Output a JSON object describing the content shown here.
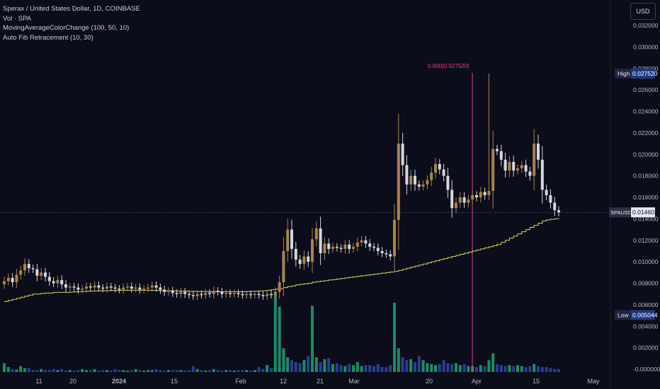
{
  "header": {
    "currency": "USD",
    "legend": [
      "Sperax / United States Dollar, 1D, COINBASE",
      "Vol · SPA",
      "MovingAverageColorChange (100, 50, 10)",
      "Auto Fib Retracement (10, 30)"
    ]
  },
  "colors": {
    "background": "#0c0d1a",
    "up_candle": "#a8834f",
    "down_candle": "#d4d6dc",
    "moving_average": "#d9d36a",
    "fib_line": "#e0409a",
    "vol_up": "#1f8a66",
    "vol_down": "#2a3f8f"
  },
  "chart_data": {
    "type": "candlestick",
    "ylim": [
      0,
      0.032
    ],
    "y_ticks": [
      "0.032000",
      "0.030000",
      "0.028000",
      "0.026000",
      "0.024000",
      "0.022000",
      "0.020000",
      "0.018000",
      "0.016000",
      "0.014000",
      "0.012000",
      "0.010000",
      "0.008000",
      "0.006000",
      "0.004000",
      "0.002000",
      "-0.000000"
    ],
    "x_ticks": [
      "11",
      "20",
      "2024",
      "15",
      "Feb",
      "12",
      "21",
      "Mar",
      "20",
      "Apr",
      "15",
      "May"
    ],
    "close": [
      0.0082,
      0.0085,
      0.0081,
      0.0088,
      0.0092,
      0.0098,
      0.0094,
      0.0093,
      0.0087,
      0.009,
      0.0086,
      0.0082,
      0.008,
      0.0083,
      0.0079,
      0.0076,
      0.0077,
      0.0076,
      0.0074,
      0.0075,
      0.0077,
      0.0076,
      0.0078,
      0.0076,
      0.0075,
      0.0077,
      0.0076,
      0.0075,
      0.0074,
      0.0076,
      0.0077,
      0.0075,
      0.0076,
      0.0074,
      0.0075,
      0.0076,
      0.0078,
      0.0076,
      0.0074,
      0.0072,
      0.0073,
      0.0071,
      0.007,
      0.0072,
      0.007,
      0.0069,
      0.0068,
      0.007,
      0.0069,
      0.0071,
      0.007,
      0.0073,
      0.0072,
      0.007,
      0.0071,
      0.007,
      0.0071,
      0.007,
      0.0069,
      0.007,
      0.0069,
      0.007,
      0.0069,
      0.0068,
      0.007,
      0.0069,
      0.0072,
      0.0081,
      0.011,
      0.013,
      0.0112,
      0.0102,
      0.0098,
      0.0105,
      0.01,
      0.0121,
      0.0131,
      0.0108,
      0.0117,
      0.0112,
      0.0114,
      0.0113,
      0.0112,
      0.0116,
      0.0112,
      0.0114,
      0.0118,
      0.012,
      0.0117,
      0.0114,
      0.0113,
      0.011,
      0.0108,
      0.0107,
      0.0105,
      0.0139,
      0.021,
      0.019,
      0.0172,
      0.018,
      0.0172,
      0.017,
      0.0172,
      0.0176,
      0.0183,
      0.0191,
      0.0186,
      0.018,
      0.0167,
      0.015,
      0.0155,
      0.016,
      0.0155,
      0.0158,
      0.0162,
      0.016,
      0.0165,
      0.0162,
      0.0166,
      0.0205,
      0.0203,
      0.0195,
      0.0185,
      0.0193,
      0.0185,
      0.0187,
      0.019,
      0.0184,
      0.018,
      0.021,
      0.0195,
      0.0167,
      0.0162,
      0.0155,
      0.0148,
      0.0146
    ],
    "ma": [
      0.0063,
      0.0064,
      0.0065,
      0.0066,
      0.0067,
      0.0068,
      0.0069,
      0.007,
      0.007,
      0.00705,
      0.0071,
      0.0071,
      0.00715,
      0.00715,
      0.00715,
      0.00715,
      0.00718,
      0.0072,
      0.00722,
      0.00724,
      0.00726,
      0.00727,
      0.00728,
      0.0073,
      0.00731,
      0.00731,
      0.00732,
      0.00733,
      0.00734,
      0.00734,
      0.00735,
      0.00735,
      0.00735,
      0.00735,
      0.00735,
      0.00734,
      0.00734,
      0.00733,
      0.00732,
      0.00731,
      0.0073,
      0.00729,
      0.00728,
      0.00727,
      0.00726,
      0.00725,
      0.00724,
      0.00723,
      0.00722,
      0.00722,
      0.00721,
      0.00721,
      0.00721,
      0.00721,
      0.00721,
      0.00721,
      0.00721,
      0.00721,
      0.00721,
      0.00722,
      0.00724,
      0.00725,
      0.00728,
      0.0073,
      0.00735,
      0.0074,
      0.00745,
      0.0075,
      0.0076,
      0.0077,
      0.00775,
      0.00785,
      0.0079,
      0.00795,
      0.008,
      0.0081,
      0.00815,
      0.0082,
      0.00825,
      0.0083,
      0.00835,
      0.0084,
      0.00845,
      0.0085,
      0.00855,
      0.0086,
      0.00865,
      0.0087,
      0.00875,
      0.0088,
      0.00885,
      0.0089,
      0.00895,
      0.009,
      0.00905,
      0.0091,
      0.0092,
      0.0093,
      0.0094,
      0.0095,
      0.0096,
      0.0097,
      0.0098,
      0.0099,
      0.01,
      0.0101,
      0.0102,
      0.0103,
      0.0104,
      0.0105,
      0.0106,
      0.0107,
      0.0108,
      0.0109,
      0.011,
      0.0111,
      0.0112,
      0.0113,
      0.0114,
      0.0115,
      0.0116,
      0.0118,
      0.012,
      0.0122,
      0.0124,
      0.0126,
      0.0128,
      0.013,
      0.0132,
      0.0134,
      0.0136,
      0.0138,
      0.0139,
      0.01395,
      0.014,
      0.01405
    ],
    "volume_rel": [
      0.9,
      0.5,
      0.3,
      0.25,
      0.6,
      0.4,
      0.4,
      0.2,
      0.2,
      0.3,
      0.2,
      0.2,
      0.3,
      0.2,
      0.3,
      0.15,
      0.2,
      0.15,
      0.2,
      0.3,
      0.2,
      0.2,
      0.3,
      0.15,
      0.2,
      0.2,
      0.15,
      0.3,
      0.2,
      0.2,
      0.15,
      0.2,
      0.3,
      0.2,
      0.15,
      0.2,
      0.2,
      0.3,
      0.2,
      0.15,
      0.2,
      0.2,
      0.2,
      0.2,
      0.15,
      0.2,
      0.6,
      0.3,
      0.2,
      0.15,
      0.2,
      0.3,
      0.2,
      0.15,
      0.2,
      0.2,
      0.15,
      0.2,
      0.2,
      0.2,
      0.15,
      0.2,
      0.5,
      0.3,
      0.7,
      0.4,
      7.9,
      6.6,
      2.4,
      1.5,
      1.2,
      1.0,
      0.9,
      1.2,
      1.6,
      6.7,
      1.5,
      1.0,
      1.3,
      1.4,
      0.8,
      0.9,
      0.7,
      0.6,
      0.8,
      0.7,
      1.0,
      0.6,
      0.7,
      0.7,
      0.6,
      0.8,
      0.5,
      0.5,
      0.7,
      7.0,
      2.4,
      1.5,
      1.2,
      1.3,
      1.0,
      1.6,
      1.2,
      0.9,
      0.8,
      0.7,
      0.8,
      1.2,
      0.9,
      0.8,
      0.9,
      0.7,
      0.8,
      0.6,
      0.6,
      0.5,
      0.7,
      0.6,
      1.2,
      1.9,
      0.8,
      0.7,
      0.6,
      0.7,
      0.6,
      0.7,
      0.6,
      0.5,
      0.6,
      0.8,
      0.6,
      0.5,
      0.5,
      0.4,
      0.3,
      0.3
    ],
    "current_label": "SPAUSD",
    "current_value": "0.014603",
    "high_label": "High",
    "high_value": "0.027520",
    "low_label": "Low",
    "low_value": "0.005044",
    "fib_text": "0.000(0.027520)"
  }
}
